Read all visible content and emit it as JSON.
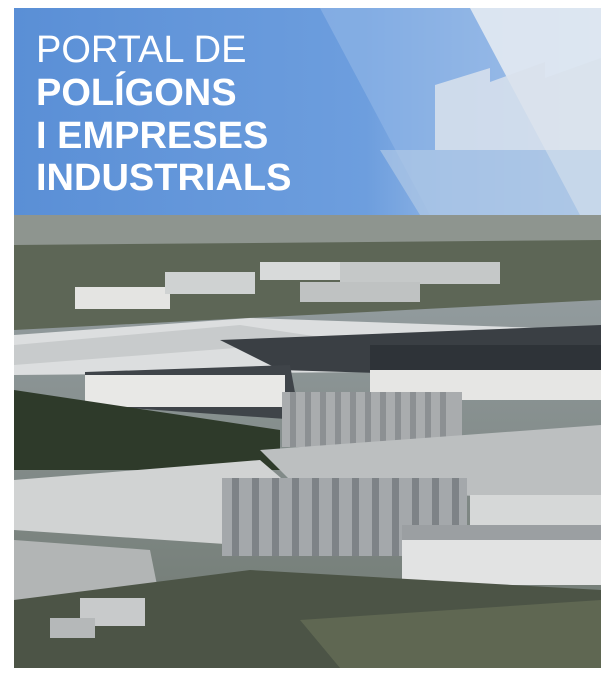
{
  "header": {
    "lines": [
      "PORTAL DE",
      "POLÍGONS",
      "I EMPRESES",
      "INDUSTRIALS"
    ]
  }
}
